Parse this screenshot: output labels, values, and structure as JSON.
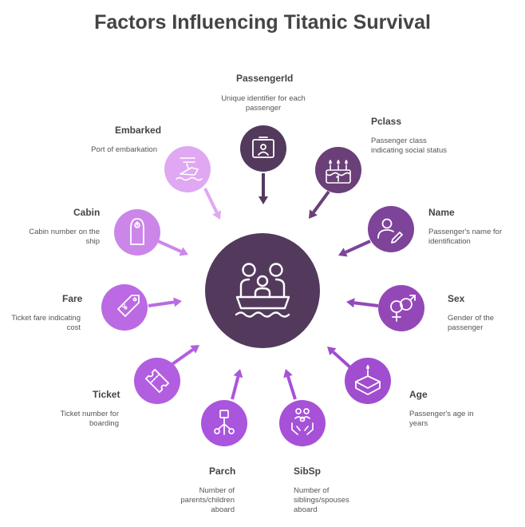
{
  "title": "Factors Influencing Titanic Survival",
  "center": {
    "icon": "family-boat-icon",
    "color": "#533a5d"
  },
  "factors": [
    {
      "key": "passengerid",
      "label": "PassengerId",
      "description": "Unique identifier for each passenger",
      "icon": "id-card-icon",
      "color": "#533a5d"
    },
    {
      "key": "pclass",
      "label": "Pclass",
      "description": "Passenger class indicating social status",
      "icon": "cake-class-icon",
      "color": "#6b3f78"
    },
    {
      "key": "name",
      "label": "Name",
      "description": "Passenger's name for identification",
      "icon": "person-pen-icon",
      "color": "#7d449a"
    },
    {
      "key": "sex",
      "label": "Sex",
      "description": "Gender of the passenger",
      "icon": "gender-symbols-icon",
      "color": "#9448b8"
    },
    {
      "key": "age",
      "label": "Age",
      "description": "Passenger's age in years",
      "icon": "birthday-cake-icon",
      "color": "#a04ecf"
    },
    {
      "key": "sibsp",
      "label": "SibSp",
      "description": "Number of siblings/spouses aboard",
      "icon": "family-hands-icon",
      "color": "#a651d8"
    },
    {
      "key": "parch",
      "label": "Parch",
      "description": "Number of parents/children aboard",
      "icon": "family-tree-icon",
      "color": "#aa55de"
    },
    {
      "key": "ticket",
      "label": "Ticket",
      "description": "Ticket number for boarding",
      "icon": "ticket-icon",
      "color": "#b25ee0"
    },
    {
      "key": "fare",
      "label": "Fare",
      "description": "Ticket fare indicating cost",
      "icon": "price-tag-icon",
      "color": "#bb6ae3"
    },
    {
      "key": "cabin",
      "label": "Cabin",
      "description": "Cabin number on the ship",
      "icon": "door-hanger-icon",
      "color": "#cc86ea"
    },
    {
      "key": "embarked",
      "label": "Embarked",
      "description": "Port of embarkation",
      "icon": "sinking-ship-icon",
      "color": "#e0a8f2"
    }
  ]
}
